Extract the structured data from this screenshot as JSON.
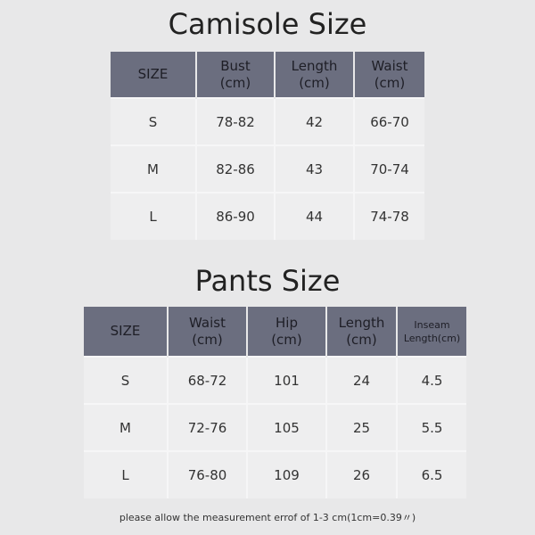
{
  "camisole": {
    "title": "Camisole Size",
    "headers": [
      "SIZE",
      "Bust\n(cm)",
      "Length\n(cm)",
      "Waist\n(cm)"
    ],
    "rows": [
      [
        "S",
        "78-82",
        "42",
        "66-70"
      ],
      [
        "M",
        "82-86",
        "43",
        "70-74"
      ],
      [
        "L",
        "86-90",
        "44",
        "74-78"
      ]
    ]
  },
  "pants": {
    "title": "Pants Size",
    "headers": [
      "SIZE",
      "Waist\n(cm)",
      "Hip\n(cm)",
      "Length\n(cm)",
      "Inseam\nLength(cm)"
    ],
    "rows": [
      [
        "S",
        "68-72",
        "101",
        "24",
        "4.5"
      ],
      [
        "M",
        "72-76",
        "105",
        "25",
        "5.5"
      ],
      [
        "L",
        "76-80",
        "109",
        "26",
        "6.5"
      ]
    ]
  },
  "note": "please allow the measurement errof of 1-3 cm(1cm=0.39〃)",
  "colors": {
    "header": "#6b6e7f",
    "cell": "#eeeeef",
    "background": "#e8e8e9"
  }
}
